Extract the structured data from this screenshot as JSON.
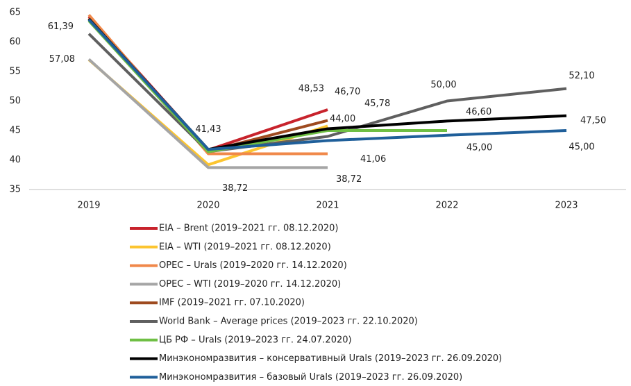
{
  "chart_data": {
    "type": "line",
    "categories": [
      "2019",
      "2020",
      "2021",
      "2022",
      "2023"
    ],
    "ylim": [
      35,
      65
    ],
    "yticks": [
      35,
      40,
      45,
      50,
      55,
      60,
      65
    ],
    "series": [
      {
        "name": "EIA – Brent (2019–2021 гг. 08.12.2020)",
        "color": "#c8232c",
        "values": [
          64.3,
          41.7,
          48.53,
          null,
          null
        ],
        "value_labels": [
          null,
          null,
          "48,53",
          null,
          null
        ]
      },
      {
        "name": "EIA – WTI (2019–2021 гг. 08.12.2020)",
        "color": "#fcc530",
        "values": [
          57.0,
          39.2,
          45.78,
          null,
          null
        ],
        "value_labels": [
          null,
          null,
          "45,78",
          null,
          null
        ]
      },
      {
        "name": "OPEC – Urals (2019–2020 гг. 14.12.2020)",
        "color": "#f0884a",
        "values": [
          64.6,
          41.06,
          41.06,
          null,
          null
        ],
        "value_labels": [
          null,
          null,
          "41,06",
          null,
          null
        ]
      },
      {
        "name": "OPEC – WTI (2019–2020 гг. 14.12.2020)",
        "color": "#a5a5a5",
        "values": [
          57.08,
          38.72,
          38.72,
          null,
          null
        ],
        "value_labels": [
          "57,08",
          "38,72",
          "38,72",
          null,
          null
        ]
      },
      {
        "name": "IMF (2019–2021 гг. 07.10.2020)",
        "color": "#9e4a1f",
        "values": [
          64.0,
          41.5,
          46.7,
          null,
          null
        ],
        "value_labels": [
          null,
          null,
          "46,70",
          null,
          null
        ]
      },
      {
        "name": "World Bank – Average prices (2019–2023 гг. 22.10.2020)",
        "color": "#5f5f5f",
        "values": [
          61.39,
          41.43,
          44.0,
          50.0,
          52.1
        ],
        "value_labels": [
          "61,39",
          "41,43",
          "44,00",
          "50,00",
          "52,10"
        ]
      },
      {
        "name": "ЦБ РФ – Urals (2019–2023 гг. 24.07.2020)",
        "color": "#6fbf44",
        "values": [
          63.6,
          41.4,
          45.0,
          45.0,
          null
        ],
        "value_labels": [
          null,
          null,
          null,
          "45,00",
          null
        ]
      },
      {
        "name": "Минэкономразвития – консервативный Urals (2019–2023 гг. 26.09.2020)",
        "color": "#000000",
        "values": [
          63.9,
          41.8,
          45.3,
          46.6,
          47.5
        ],
        "value_labels": [
          null,
          null,
          null,
          "46,60",
          "47,50"
        ]
      },
      {
        "name": "Минэкономразвития – базовый Urals (2019–2023 гг. 26.09.2020)",
        "color": "#1f5f9a",
        "values": [
          63.8,
          41.8,
          43.3,
          44.2,
          45.0
        ],
        "value_labels": [
          null,
          null,
          null,
          null,
          "45,00"
        ]
      }
    ]
  }
}
